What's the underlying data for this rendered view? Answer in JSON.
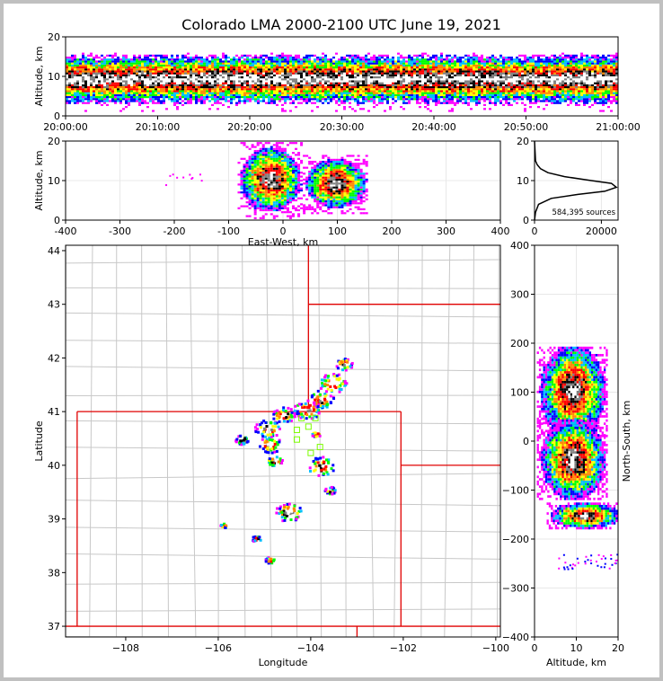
{
  "title": "Colorado LMA 2000-2100 UTC June 19, 2021",
  "colors": {
    "scale": [
      "#ff00ff",
      "#0000ff",
      "#00bfff",
      "#00ff00",
      "#ffff00",
      "#ff8800",
      "#ff0000",
      "#000000",
      "#808080",
      "#ffffff"
    ],
    "state_border": "#e00000",
    "county_border": "#c8c8c8",
    "station_marker": "#7cfc00"
  },
  "chart_data": [
    {
      "type": "heatmap",
      "name": "altitude-vs-time",
      "ylabel": "Altitude, km",
      "xlabel": "",
      "ylim": [
        0,
        20
      ],
      "yticks": [
        0,
        10,
        20
      ],
      "xticks": [
        "20:00:00",
        "20:10:00",
        "20:20:00",
        "20:30:00",
        "20:40:00",
        "20:50:00",
        "21:00:00"
      ],
      "xlim": [
        "20:00:00",
        "21:00:00"
      ],
      "layer_km": [
        2,
        14
      ],
      "core_km": [
        7,
        11
      ]
    },
    {
      "type": "heatmap",
      "name": "altitude-vs-east-west",
      "xlabel": "East-West, km",
      "ylabel": "Altitude, km",
      "xlim": [
        -400,
        400
      ],
      "ylim": [
        0,
        20
      ],
      "xticks": [
        -400,
        -300,
        -200,
        -100,
        0,
        100,
        200,
        300,
        400
      ],
      "yticks": [
        0,
        10,
        20
      ],
      "cells": [
        {
          "x": -25,
          "y": 10,
          "rx": 45,
          "ry": 6.5
        },
        {
          "x": 95,
          "y": 9,
          "rx": 45,
          "ry": 5
        }
      ]
    },
    {
      "type": "line",
      "name": "source-altitude-histogram",
      "annotation": "584,395 sources",
      "xlim": [
        0,
        25000
      ],
      "ylim": [
        0,
        20
      ],
      "xticks": [
        0,
        20000
      ],
      "yticks": [
        0,
        10,
        20
      ],
      "x": [
        0,
        300,
        1200,
        5000,
        13000,
        21000,
        24500,
        23000,
        17000,
        9000,
        4000,
        1800,
        800,
        300,
        0
      ],
      "y": [
        0,
        2,
        4,
        5.5,
        6.5,
        7.3,
        8.3,
        9.3,
        10,
        11,
        12,
        13,
        14,
        15,
        20
      ]
    },
    {
      "type": "scatter",
      "name": "plan-view-map",
      "xlabel": "Longitude",
      "ylabel": "Latitude",
      "xlim": [
        -109.3,
        -99.9
      ],
      "ylim": [
        36.8,
        44.1
      ],
      "xticks": [
        -108,
        -106,
        -104,
        -102,
        -100
      ],
      "yticks": [
        37,
        38,
        39,
        40,
        41,
        42,
        43,
        44
      ],
      "cells": [
        {
          "lon": -103.3,
          "lat": 41.9,
          "s": 0.18
        },
        {
          "lon": -103.55,
          "lat": 41.55,
          "s": 0.3
        },
        {
          "lon": -103.8,
          "lat": 41.25,
          "s": 0.28
        },
        {
          "lon": -104.1,
          "lat": 41.05,
          "s": 0.3
        },
        {
          "lon": -104.6,
          "lat": 40.95,
          "s": 0.25
        },
        {
          "lon": -104.95,
          "lat": 40.7,
          "s": 0.28
        },
        {
          "lon": -104.9,
          "lat": 40.4,
          "s": 0.25
        },
        {
          "lon": -104.8,
          "lat": 40.1,
          "s": 0.18
        },
        {
          "lon": -103.8,
          "lat": 40.0,
          "s": 0.3
        },
        {
          "lon": -103.6,
          "lat": 39.55,
          "s": 0.12
        },
        {
          "lon": -104.5,
          "lat": 39.15,
          "s": 0.3
        },
        {
          "lon": -105.5,
          "lat": 40.5,
          "s": 0.15
        },
        {
          "lon": -105.2,
          "lat": 38.65,
          "s": 0.1
        },
        {
          "lon": -105.9,
          "lat": 38.9,
          "s": 0.08
        },
        {
          "lon": -104.9,
          "lat": 38.25,
          "s": 0.1
        },
        {
          "lon": -103.9,
          "lat": 40.6,
          "s": 0.1
        }
      ],
      "stations": [
        {
          "lon": -104.2,
          "lat": 40.88
        },
        {
          "lon": -103.9,
          "lat": 40.88
        },
        {
          "lon": -104.05,
          "lat": 40.72
        },
        {
          "lon": -104.3,
          "lat": 40.66
        },
        {
          "lon": -104.3,
          "lat": 40.48
        },
        {
          "lon": -103.8,
          "lat": 40.34
        },
        {
          "lon": -104.0,
          "lat": 40.23
        }
      ]
    },
    {
      "type": "heatmap",
      "name": "north-south-vs-altitude",
      "xlabel": "Altitude, km",
      "ylabel": "North-South, km",
      "xlim": [
        0,
        20
      ],
      "ylim": [
        -400,
        400
      ],
      "xticks": [
        0,
        10,
        20
      ],
      "yticks": [
        -400,
        -300,
        -200,
        -100,
        0,
        100,
        200,
        300,
        400
      ],
      "cells": [
        {
          "x": 9,
          "y": 100,
          "rx": 6.5,
          "ry": 80
        },
        {
          "x": 9,
          "y": -40,
          "rx": 6.5,
          "ry": 70
        },
        {
          "x": 12,
          "y": -155,
          "rx": 7,
          "ry": 22
        }
      ]
    }
  ]
}
